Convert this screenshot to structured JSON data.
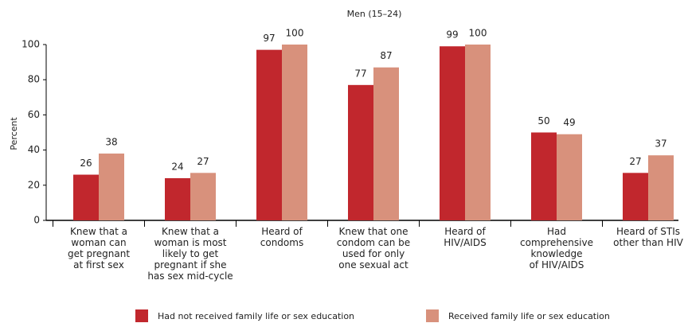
{
  "chart_data": {
    "type": "bar",
    "title": "Men (15–24)",
    "y_label": "Percent",
    "categories": [
      "Knew that a\nwoman can\nget pregnant\nat first sex",
      "Knew that a\nwoman is most\nlikely to get\npregnant if she\nhas sex mid-cycle",
      "Heard of\ncondoms",
      "Knew that one\ncondom can be\nused for only\none sexual act",
      "Heard of\nHIV/AIDS",
      "Had\ncomprehensive\nknowledge\nof HIV/AIDS",
      "Heard of STIs\nother than HIV"
    ],
    "series": [
      {
        "name": "Had not received family life or sex education",
        "color": "#c1272d",
        "values": [
          26,
          24,
          97,
          77,
          99,
          50,
          27
        ]
      },
      {
        "name": "Received family life or sex education",
        "color": "#d8917c",
        "values": [
          38,
          27,
          100,
          87,
          100,
          49,
          37
        ]
      }
    ],
    "ylim": [
      0,
      100
    ],
    "yticks": [
      0,
      20,
      40,
      60,
      80,
      100
    ],
    "grid": false,
    "legend": "bottom"
  }
}
